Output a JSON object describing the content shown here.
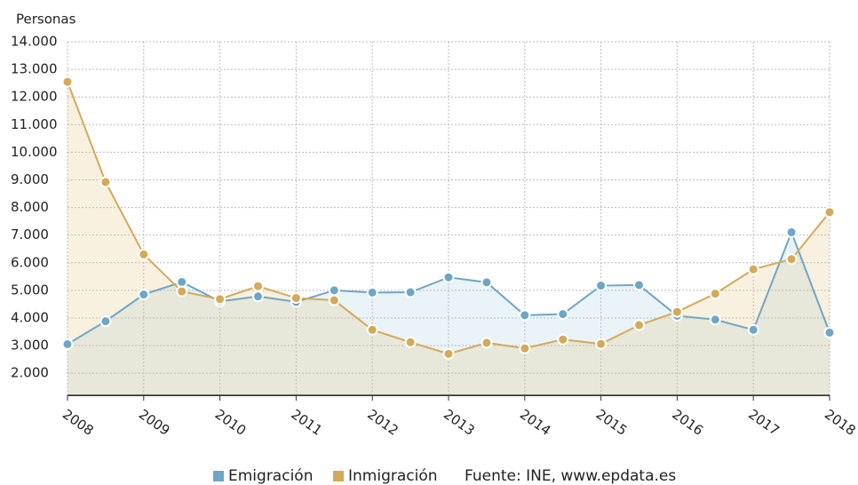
{
  "chart_data": {
    "type": "line",
    "y_axis_label": "Personas",
    "source": "Fuente: INE, www.epdata.es",
    "x": [
      2008,
      2008.5,
      2009,
      2009.5,
      2010,
      2010.5,
      2011,
      2011.5,
      2012,
      2012.5,
      2013,
      2013.5,
      2014,
      2014.5,
      2015,
      2015.5,
      2016,
      2016.5,
      2017,
      2017.5,
      2018
    ],
    "xlim": [
      2008,
      2018
    ],
    "xticks": [
      2008,
      2009,
      2010,
      2011,
      2012,
      2013,
      2014,
      2015,
      2016,
      2017,
      2018
    ],
    "ylim": [
      1200,
      14000
    ],
    "yticks": [
      {
        "value": 2000,
        "label": "2.000"
      },
      {
        "value": 3000,
        "label": "3.000"
      },
      {
        "value": 4000,
        "label": "4.000"
      },
      {
        "value": 5000,
        "label": "5.000"
      },
      {
        "value": 6000,
        "label": "6.000"
      },
      {
        "value": 7000,
        "label": "7.000"
      },
      {
        "value": 8000,
        "label": "8.000"
      },
      {
        "value": 9000,
        "label": "9.000"
      },
      {
        "value": 10000,
        "label": "10.000"
      },
      {
        "value": 11000,
        "label": "11.000"
      },
      {
        "value": 12000,
        "label": "12.000"
      },
      {
        "value": 13000,
        "label": "13.000"
      },
      {
        "value": 14000,
        "label": "14.000"
      }
    ],
    "grid": true,
    "legend": "bottom",
    "series": [
      {
        "name": "Emigración",
        "color": "#6fa6c6",
        "area_color": "rgba(160,200,225,0.22)",
        "values": [
          3050,
          3880,
          4850,
          5300,
          4600,
          4780,
          4580,
          5000,
          4920,
          4930,
          5470,
          5290,
          4100,
          4140,
          5170,
          5190,
          4080,
          3940,
          3570,
          7100,
          3470
        ]
      },
      {
        "name": "Inmigración",
        "color": "#d4aa58",
        "area_color": "rgba(225,190,115,0.22)",
        "values": [
          12550,
          8920,
          6300,
          4960,
          4680,
          5150,
          4720,
          4640,
          3570,
          3120,
          2700,
          3100,
          2900,
          3220,
          3060,
          3740,
          4220,
          4880,
          5760,
          6130,
          7830
        ]
      }
    ]
  }
}
